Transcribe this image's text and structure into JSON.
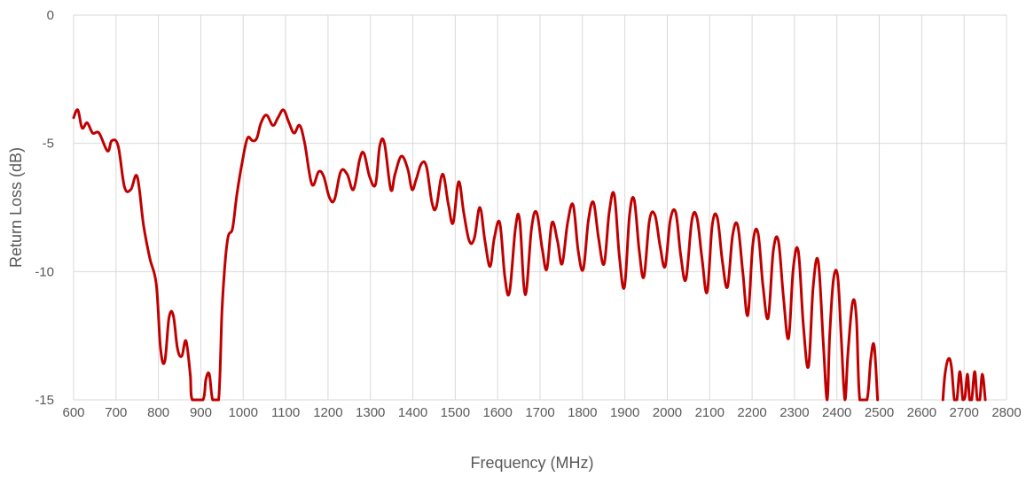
{
  "chart_data": {
    "type": "line",
    "title": "",
    "xlabel": "Frequency (MHz)",
    "ylabel": "Return Loss (dB)",
    "xlim": [
      600,
      2800
    ],
    "ylim": [
      -15,
      0
    ],
    "x_ticks": [
      "600",
      "700",
      "800",
      "900",
      "1000",
      "1100",
      "1200",
      "1300",
      "1400",
      "1500",
      "1600",
      "1700",
      "1800",
      "1900",
      "2000",
      "2100",
      "2200",
      "2300",
      "2400",
      "2500",
      "2600",
      "2700",
      "2800"
    ],
    "y_ticks": [
      "0",
      "-5",
      "-10",
      "-15"
    ],
    "grid": "vertical and horizontal",
    "legend": "none",
    "series": [
      {
        "color": "#c00000",
        "points": [
          [
            600,
            -4.0
          ],
          [
            610,
            -3.7
          ],
          [
            620,
            -4.4
          ],
          [
            632,
            -4.2
          ],
          [
            645,
            -4.6
          ],
          [
            660,
            -4.6
          ],
          [
            680,
            -5.3
          ],
          [
            690,
            -4.9
          ],
          [
            705,
            -5.1
          ],
          [
            720,
            -6.7
          ],
          [
            735,
            -6.8
          ],
          [
            750,
            -6.3
          ],
          [
            765,
            -8.2
          ],
          [
            780,
            -9.5
          ],
          [
            795,
            -10.5
          ],
          [
            805,
            -13.0
          ],
          [
            815,
            -13.5
          ],
          [
            825,
            -11.8
          ],
          [
            835,
            -11.7
          ],
          [
            845,
            -13.0
          ],
          [
            855,
            -13.3
          ],
          [
            865,
            -12.7
          ],
          [
            875,
            -14.0
          ],
          [
            880,
            -15.0
          ],
          [
            905,
            -15.0
          ],
          [
            912,
            -14.2
          ],
          [
            920,
            -14.0
          ],
          [
            928,
            -15.0
          ],
          [
            942,
            -15.0
          ],
          [
            950,
            -11.5
          ],
          [
            958,
            -9.5
          ],
          [
            965,
            -8.6
          ],
          [
            975,
            -8.3
          ],
          [
            985,
            -7.0
          ],
          [
            998,
            -5.7
          ],
          [
            1010,
            -4.8
          ],
          [
            1022,
            -4.9
          ],
          [
            1032,
            -4.8
          ],
          [
            1042,
            -4.2
          ],
          [
            1055,
            -3.9
          ],
          [
            1070,
            -4.3
          ],
          [
            1082,
            -4.0
          ],
          [
            1095,
            -3.7
          ],
          [
            1108,
            -4.2
          ],
          [
            1120,
            -4.6
          ],
          [
            1133,
            -4.3
          ],
          [
            1145,
            -5.0
          ],
          [
            1162,
            -6.6
          ],
          [
            1178,
            -6.1
          ],
          [
            1190,
            -6.3
          ],
          [
            1203,
            -7.1
          ],
          [
            1215,
            -7.2
          ],
          [
            1230,
            -6.1
          ],
          [
            1245,
            -6.2
          ],
          [
            1260,
            -6.8
          ],
          [
            1275,
            -5.6
          ],
          [
            1285,
            -5.4
          ],
          [
            1298,
            -6.3
          ],
          [
            1312,
            -6.6
          ],
          [
            1322,
            -5.1
          ],
          [
            1333,
            -5.0
          ],
          [
            1348,
            -6.8
          ],
          [
            1358,
            -6.2
          ],
          [
            1373,
            -5.5
          ],
          [
            1388,
            -6.0
          ],
          [
            1398,
            -6.8
          ],
          [
            1408,
            -6.4
          ],
          [
            1420,
            -5.8
          ],
          [
            1432,
            -5.9
          ],
          [
            1445,
            -7.3
          ],
          [
            1455,
            -7.5
          ],
          [
            1470,
            -6.2
          ],
          [
            1484,
            -7.4
          ],
          [
            1495,
            -8.1
          ],
          [
            1508,
            -6.5
          ],
          [
            1520,
            -7.7
          ],
          [
            1533,
            -8.8
          ],
          [
            1545,
            -8.7
          ],
          [
            1558,
            -7.5
          ],
          [
            1570,
            -8.8
          ],
          [
            1582,
            -9.8
          ],
          [
            1592,
            -8.7
          ],
          [
            1605,
            -8.1
          ],
          [
            1617,
            -10.2
          ],
          [
            1628,
            -10.8
          ],
          [
            1642,
            -8.3
          ],
          [
            1652,
            -8.0
          ],
          [
            1665,
            -10.9
          ],
          [
            1680,
            -8.3
          ],
          [
            1692,
            -7.7
          ],
          [
            1705,
            -9.1
          ],
          [
            1716,
            -9.9
          ],
          [
            1728,
            -8.1
          ],
          [
            1741,
            -8.8
          ],
          [
            1752,
            -9.7
          ],
          [
            1765,
            -8.1
          ],
          [
            1778,
            -7.4
          ],
          [
            1790,
            -9.2
          ],
          [
            1802,
            -9.9
          ],
          [
            1814,
            -8.0
          ],
          [
            1826,
            -7.3
          ],
          [
            1838,
            -8.7
          ],
          [
            1851,
            -9.7
          ],
          [
            1863,
            -7.7
          ],
          [
            1875,
            -7.0
          ],
          [
            1887,
            -9.4
          ],
          [
            1899,
            -10.6
          ],
          [
            1911,
            -7.8
          ],
          [
            1922,
            -7.2
          ],
          [
            1934,
            -9.2
          ],
          [
            1945,
            -10.2
          ],
          [
            1958,
            -8.0
          ],
          [
            1971,
            -7.8
          ],
          [
            1983,
            -9.0
          ],
          [
            1995,
            -9.8
          ],
          [
            2007,
            -8.0
          ],
          [
            2020,
            -7.7
          ],
          [
            2032,
            -9.4
          ],
          [
            2044,
            -10.3
          ],
          [
            2058,
            -8.0
          ],
          [
            2070,
            -7.9
          ],
          [
            2082,
            -9.5
          ],
          [
            2094,
            -10.8
          ],
          [
            2106,
            -8.2
          ],
          [
            2118,
            -7.9
          ],
          [
            2130,
            -9.6
          ],
          [
            2142,
            -10.6
          ],
          [
            2154,
            -8.6
          ],
          [
            2166,
            -8.2
          ],
          [
            2178,
            -10.0
          ],
          [
            2190,
            -11.7
          ],
          [
            2202,
            -8.9
          ],
          [
            2214,
            -8.5
          ],
          [
            2226,
            -10.6
          ],
          [
            2238,
            -11.8
          ],
          [
            2250,
            -9.2
          ],
          [
            2262,
            -8.8
          ],
          [
            2274,
            -11.0
          ],
          [
            2286,
            -12.6
          ],
          [
            2297,
            -9.9
          ],
          [
            2309,
            -9.2
          ],
          [
            2321,
            -12.1
          ],
          [
            2333,
            -13.7
          ],
          [
            2344,
            -10.6
          ],
          [
            2356,
            -9.6
          ],
          [
            2368,
            -12.8
          ],
          [
            2377,
            -15.0
          ],
          [
            2383,
            -12.5
          ],
          [
            2392,
            -10.3
          ],
          [
            2402,
            -10.2
          ],
          [
            2410,
            -12.5
          ],
          [
            2419,
            -15.0
          ],
          [
            2426,
            -13.2
          ],
          [
            2437,
            -11.2
          ],
          [
            2446,
            -11.8
          ],
          [
            2454,
            -15.0
          ],
          [
            2471,
            -15.0
          ],
          [
            2480,
            -13.4
          ],
          [
            2488,
            -12.9
          ],
          [
            2496,
            -15.0
          ]
        ]
      },
      {
        "color": "#c00000",
        "points": [
          [
            2650,
            -15.0
          ],
          [
            2655,
            -14.0
          ],
          [
            2663,
            -13.4
          ],
          [
            2670,
            -13.7
          ],
          [
            2677,
            -15.0
          ],
          [
            2683,
            -15.0
          ],
          [
            2690,
            -13.9
          ],
          [
            2697,
            -15.0
          ],
          [
            2702,
            -14.9
          ],
          [
            2708,
            -14.0
          ],
          [
            2713,
            -15.0
          ],
          [
            2718,
            -15.0
          ],
          [
            2725,
            -13.9
          ],
          [
            2731,
            -15.0
          ],
          [
            2737,
            -15.0
          ],
          [
            2743,
            -14.0
          ],
          [
            2750,
            -15.0
          ]
        ]
      }
    ]
  }
}
